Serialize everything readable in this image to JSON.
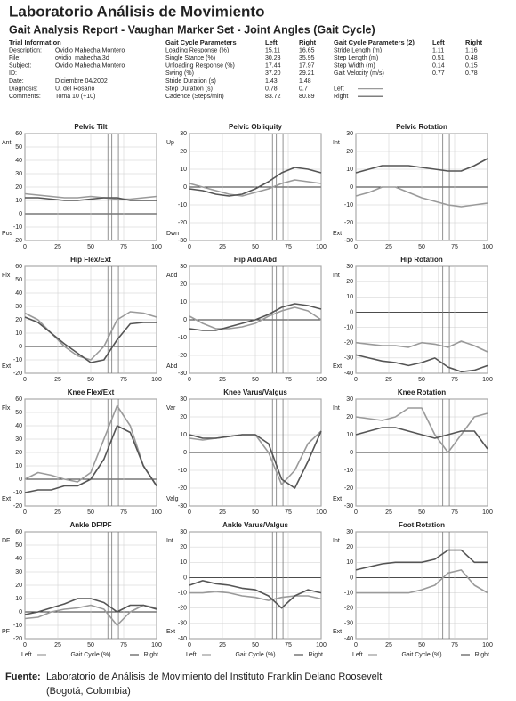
{
  "header": {
    "title": "Laboratorio Análisis de Movimiento",
    "subtitle": "Gait Analysis Report - Vaughan Marker Set - Joint Angles (Gait Cycle)"
  },
  "trial_info": {
    "heading": "Trial Information",
    "rows": [
      [
        "Description:",
        "Ovidio Mahecha Montero"
      ],
      [
        "File:",
        "ovidio_mahecha.3d"
      ],
      [
        "Subject:",
        "Ovidio Mahecha Montero"
      ],
      [
        "ID:"
      ],
      [
        "Date:",
        "Diciembre 04/2002"
      ],
      [
        "Diagnosis:",
        "U. del Rosario"
      ],
      [
        "Comments:",
        "Toma 10 (+10)"
      ]
    ]
  },
  "gait_parameters": {
    "heading": "Gait Cycle Parameters",
    "columns": [
      "Left",
      "Right"
    ],
    "rows": [
      [
        "Loading Response (%)",
        "15.11",
        "16.65"
      ],
      [
        "Single Stance (%)",
        "30.23",
        "35.95"
      ],
      [
        "Unloading Response (%)",
        "17.44",
        "17.97"
      ],
      [
        "Swing (%)",
        "37.20",
        "29.21"
      ],
      [
        "Stride Duration (s)",
        "1.43",
        "1.48"
      ],
      [
        "Step Duration (s)",
        "0.78",
        "0.7"
      ],
      [
        "Cadence (Steps/min)",
        "83.72",
        "80.89"
      ]
    ]
  },
  "gait_parameters_2": {
    "heading": "Gait Cycle Parameters (2)",
    "columns": [
      "Left",
      "Right"
    ],
    "rows": [
      [
        "Stride Length (m)",
        "1.11",
        "1.16"
      ],
      [
        "Step Length (m)",
        "0.51",
        "0.48"
      ],
      [
        "Step Width (m)",
        "0.14",
        "0.15"
      ],
      [
        "Gait Velocity (m/s)",
        "0.77",
        "0.78"
      ]
    ],
    "legend": [
      "Left",
      "Right"
    ]
  },
  "chart_data": [
    {
      "type": "line",
      "title": "Pelvic Tilt",
      "top_label": "Ant",
      "bottom_label": "Pos",
      "xlim": [
        0,
        100
      ],
      "xticks": [
        0,
        25,
        50,
        75,
        100
      ],
      "ylim": [
        -20,
        60
      ],
      "yticks": [
        -20,
        -10,
        0,
        10,
        20,
        30,
        40,
        50,
        60
      ],
      "events": [
        63,
        66,
        71
      ],
      "legend": false,
      "x": [
        0,
        10,
        20,
        30,
        40,
        50,
        60,
        70,
        80,
        90,
        100
      ],
      "series": [
        {
          "name": "Left",
          "color": "#9a9a9a",
          "values": [
            15,
            14,
            13,
            12,
            12,
            13,
            12,
            11,
            11,
            12,
            13
          ]
        },
        {
          "name": "Right",
          "color": "#555555",
          "values": [
            12,
            12,
            11,
            10,
            10,
            11,
            12,
            12,
            10,
            10,
            10
          ]
        }
      ]
    },
    {
      "type": "line",
      "title": "Pelvic Obliquity",
      "top_label": "Up",
      "bottom_label": "Dwn",
      "xlim": [
        0,
        100
      ],
      "xticks": [
        0,
        25,
        50,
        75,
        100
      ],
      "ylim": [
        -30,
        30
      ],
      "yticks": [
        -30,
        -20,
        -10,
        0,
        10,
        20,
        30
      ],
      "events": [
        63,
        66,
        71
      ],
      "legend": false,
      "x": [
        0,
        10,
        20,
        30,
        40,
        50,
        60,
        70,
        80,
        90,
        100
      ],
      "series": [
        {
          "name": "Left",
          "color": "#9a9a9a",
          "values": [
            2,
            0,
            -2,
            -4,
            -5,
            -3,
            -1,
            2,
            4,
            3,
            2
          ]
        },
        {
          "name": "Right",
          "color": "#555555",
          "values": [
            -1,
            -2,
            -4,
            -5,
            -4,
            -1,
            3,
            8,
            11,
            10,
            8
          ]
        }
      ]
    },
    {
      "type": "line",
      "title": "Pelvic Rotation",
      "top_label": "Int",
      "bottom_label": "Ext",
      "xlim": [
        0,
        100
      ],
      "xticks": [
        0,
        25,
        50,
        75,
        100
      ],
      "ylim": [
        -30,
        30
      ],
      "yticks": [
        -30,
        -20,
        -10,
        0,
        10,
        20,
        30
      ],
      "events": [
        63,
        66,
        71
      ],
      "legend": false,
      "x": [
        0,
        10,
        20,
        30,
        40,
        50,
        60,
        70,
        80,
        90,
        100
      ],
      "series": [
        {
          "name": "Left",
          "color": "#9a9a9a",
          "values": [
            -5,
            -3,
            0,
            0,
            -3,
            -6,
            -8,
            -10,
            -11,
            -10,
            -9
          ]
        },
        {
          "name": "Right",
          "color": "#555555",
          "values": [
            8,
            10,
            12,
            12,
            12,
            11,
            10,
            9,
            9,
            12,
            16
          ]
        }
      ]
    },
    {
      "type": "line",
      "title": "Hip Flex/Ext",
      "top_label": "Flx",
      "bottom_label": "Ext",
      "xlim": [
        0,
        100
      ],
      "xticks": [
        0,
        25,
        50,
        75,
        100
      ],
      "ylim": [
        -20,
        60
      ],
      "yticks": [
        -20,
        -10,
        0,
        10,
        20,
        30,
        40,
        50,
        60
      ],
      "events": [
        63,
        66,
        71
      ],
      "legend": false,
      "x": [
        0,
        10,
        20,
        30,
        40,
        50,
        60,
        70,
        80,
        90,
        100
      ],
      "series": [
        {
          "name": "Left",
          "color": "#9a9a9a",
          "values": [
            25,
            20,
            10,
            0,
            -7,
            -10,
            0,
            20,
            26,
            25,
            22
          ]
        },
        {
          "name": "Right",
          "color": "#555555",
          "values": [
            22,
            18,
            10,
            2,
            -5,
            -12,
            -10,
            5,
            17,
            18,
            18
          ]
        }
      ]
    },
    {
      "type": "line",
      "title": "Hip Add/Abd",
      "top_label": "Add",
      "bottom_label": "Abd",
      "xlim": [
        0,
        100
      ],
      "xticks": [
        0,
        25,
        50,
        75,
        100
      ],
      "ylim": [
        -30,
        30
      ],
      "yticks": [
        -30,
        -20,
        -10,
        0,
        10,
        20,
        30
      ],
      "events": [
        63,
        66,
        71
      ],
      "legend": false,
      "x": [
        0,
        10,
        20,
        30,
        40,
        50,
        60,
        70,
        80,
        90,
        100
      ],
      "series": [
        {
          "name": "Left",
          "color": "#9a9a9a",
          "values": [
            2,
            -2,
            -5,
            -5,
            -4,
            -2,
            2,
            5,
            7,
            5,
            0
          ]
        },
        {
          "name": "Right",
          "color": "#555555",
          "values": [
            -5,
            -6,
            -6,
            -4,
            -2,
            0,
            3,
            7,
            9,
            8,
            6
          ]
        }
      ]
    },
    {
      "type": "line",
      "title": "Hip Rotation",
      "top_label": "Int",
      "bottom_label": "Ext",
      "xlim": [
        0,
        100
      ],
      "xticks": [
        0,
        25,
        50,
        75,
        100
      ],
      "ylim": [
        -40,
        30
      ],
      "yticks": [
        -40,
        -30,
        -20,
        -10,
        0,
        10,
        20,
        30
      ],
      "events": [
        63,
        66,
        71
      ],
      "legend": false,
      "x": [
        0,
        10,
        20,
        30,
        40,
        50,
        60,
        70,
        80,
        90,
        100
      ],
      "series": [
        {
          "name": "Left",
          "color": "#9a9a9a",
          "values": [
            -20,
            -21,
            -22,
            -22,
            -23,
            -20,
            -21,
            -23,
            -19,
            -22,
            -26
          ]
        },
        {
          "name": "Right",
          "color": "#555555",
          "values": [
            -28,
            -30,
            -32,
            -33,
            -35,
            -33,
            -30,
            -36,
            -39,
            -38,
            -35
          ]
        }
      ]
    },
    {
      "type": "line",
      "title": "Knee Flex/Ext",
      "top_label": "Flx",
      "bottom_label": "Ext",
      "xlim": [
        0,
        100
      ],
      "xticks": [
        0,
        25,
        50,
        75,
        100
      ],
      "ylim": [
        -20,
        60
      ],
      "yticks": [
        -20,
        -10,
        0,
        10,
        20,
        30,
        40,
        50,
        60
      ],
      "events": [
        63,
        66,
        71
      ],
      "legend": false,
      "x": [
        0,
        10,
        20,
        30,
        40,
        50,
        60,
        70,
        80,
        90,
        100
      ],
      "series": [
        {
          "name": "Left",
          "color": "#9a9a9a",
          "values": [
            0,
            5,
            3,
            0,
            -2,
            5,
            30,
            55,
            40,
            10,
            -5
          ]
        },
        {
          "name": "Right",
          "color": "#555555",
          "values": [
            -10,
            -8,
            -8,
            -5,
            -5,
            0,
            15,
            40,
            35,
            10,
            -5
          ]
        }
      ]
    },
    {
      "type": "line",
      "title": "Knee Varus/Valgus",
      "top_label": "Var",
      "bottom_label": "Valg",
      "xlim": [
        0,
        100
      ],
      "xticks": [
        0,
        25,
        50,
        75,
        100
      ],
      "ylim": [
        -30,
        30
      ],
      "yticks": [
        -30,
        -20,
        -10,
        0,
        10,
        20,
        30
      ],
      "events": [
        63,
        66,
        71
      ],
      "legend": false,
      "x": [
        0,
        10,
        20,
        30,
        40,
        50,
        60,
        70,
        80,
        90,
        100
      ],
      "series": [
        {
          "name": "Left",
          "color": "#9a9a9a",
          "values": [
            8,
            7,
            8,
            9,
            10,
            10,
            0,
            -18,
            -10,
            5,
            12
          ]
        },
        {
          "name": "Right",
          "color": "#555555",
          "values": [
            10,
            8,
            8,
            9,
            10,
            10,
            5,
            -15,
            -20,
            -5,
            12
          ]
        }
      ]
    },
    {
      "type": "line",
      "title": "Knee Rotation",
      "top_label": "Int",
      "bottom_label": "Ext",
      "xlim": [
        0,
        100
      ],
      "xticks": [
        0,
        25,
        50,
        75,
        100
      ],
      "ylim": [
        -30,
        30
      ],
      "yticks": [
        -30,
        -20,
        -10,
        0,
        10,
        20,
        30
      ],
      "events": [
        63,
        66,
        71
      ],
      "legend": false,
      "x": [
        0,
        10,
        20,
        30,
        40,
        50,
        60,
        70,
        80,
        90,
        100
      ],
      "series": [
        {
          "name": "Left",
          "color": "#9a9a9a",
          "values": [
            20,
            19,
            18,
            20,
            25,
            25,
            10,
            0,
            10,
            20,
            22
          ]
        },
        {
          "name": "Right",
          "color": "#555555",
          "values": [
            10,
            12,
            14,
            14,
            12,
            10,
            8,
            10,
            12,
            12,
            2
          ]
        }
      ]
    },
    {
      "type": "line",
      "title": "Ankle DF/PF",
      "top_label": "DF",
      "bottom_label": "PF",
      "x_label": "Gait Cycle (%)",
      "xlim": [
        0,
        100
      ],
      "xticks": [
        0,
        25,
        50,
        75,
        100
      ],
      "ylim": [
        -20,
        60
      ],
      "yticks": [
        -20,
        -10,
        0,
        10,
        20,
        30,
        40,
        50,
        60
      ],
      "events": [
        63,
        66,
        71
      ],
      "legend": true,
      "x": [
        0,
        10,
        20,
        30,
        40,
        50,
        60,
        70,
        80,
        90,
        100
      ],
      "series": [
        {
          "name": "Left",
          "color": "#9a9a9a",
          "values": [
            -5,
            -4,
            0,
            2,
            3,
            5,
            2,
            -10,
            0,
            5,
            3
          ]
        },
        {
          "name": "Right",
          "color": "#555555",
          "values": [
            -2,
            0,
            3,
            6,
            10,
            10,
            7,
            0,
            5,
            5,
            2
          ]
        }
      ]
    },
    {
      "type": "line",
      "title": "Ankle Varus/Valgus",
      "top_label": "Int",
      "bottom_label": "Ext",
      "x_label": "Gait Cycle (%)",
      "xlim": [
        0,
        100
      ],
      "xticks": [
        0,
        25,
        50,
        75,
        100
      ],
      "ylim": [
        -40,
        30
      ],
      "yticks": [
        -40,
        -30,
        -20,
        -10,
        0,
        10,
        20,
        30
      ],
      "events": [
        63,
        66,
        71
      ],
      "legend": true,
      "x": [
        0,
        10,
        20,
        30,
        40,
        50,
        60,
        70,
        80,
        90,
        100
      ],
      "series": [
        {
          "name": "Left",
          "color": "#9a9a9a",
          "values": [
            -10,
            -10,
            -9,
            -10,
            -12,
            -13,
            -15,
            -13,
            -12,
            -12,
            -14
          ]
        },
        {
          "name": "Right",
          "color": "#555555",
          "values": [
            -5,
            -2,
            -4,
            -5,
            -7,
            -8,
            -12,
            -20,
            -12,
            -8,
            -10
          ]
        }
      ]
    },
    {
      "type": "line",
      "title": "Foot Rotation",
      "top_label": "Int",
      "bottom_label": "Ext",
      "x_label": "Gait Cycle (%)",
      "xlim": [
        0,
        100
      ],
      "xticks": [
        0,
        25,
        50,
        75,
        100
      ],
      "ylim": [
        -40,
        30
      ],
      "yticks": [
        -40,
        -30,
        -20,
        -10,
        0,
        10,
        20,
        30
      ],
      "events": [
        63,
        66,
        71
      ],
      "legend": true,
      "x": [
        0,
        10,
        20,
        30,
        40,
        50,
        60,
        70,
        80,
        90,
        100
      ],
      "series": [
        {
          "name": "Left",
          "color": "#9a9a9a",
          "values": [
            -10,
            -10,
            -10,
            -10,
            -10,
            -8,
            -5,
            3,
            5,
            -5,
            -10
          ]
        },
        {
          "name": "Right",
          "color": "#555555",
          "values": [
            5,
            7,
            9,
            10,
            10,
            10,
            12,
            18,
            18,
            10,
            10
          ]
        }
      ]
    }
  ],
  "footer": {
    "label": "Fuente:",
    "text": "Laboratorio de Análisis de Movimiento del Instituto Franklin Delano Roosevelt",
    "text2": "(Bogotá, Colombia)"
  }
}
